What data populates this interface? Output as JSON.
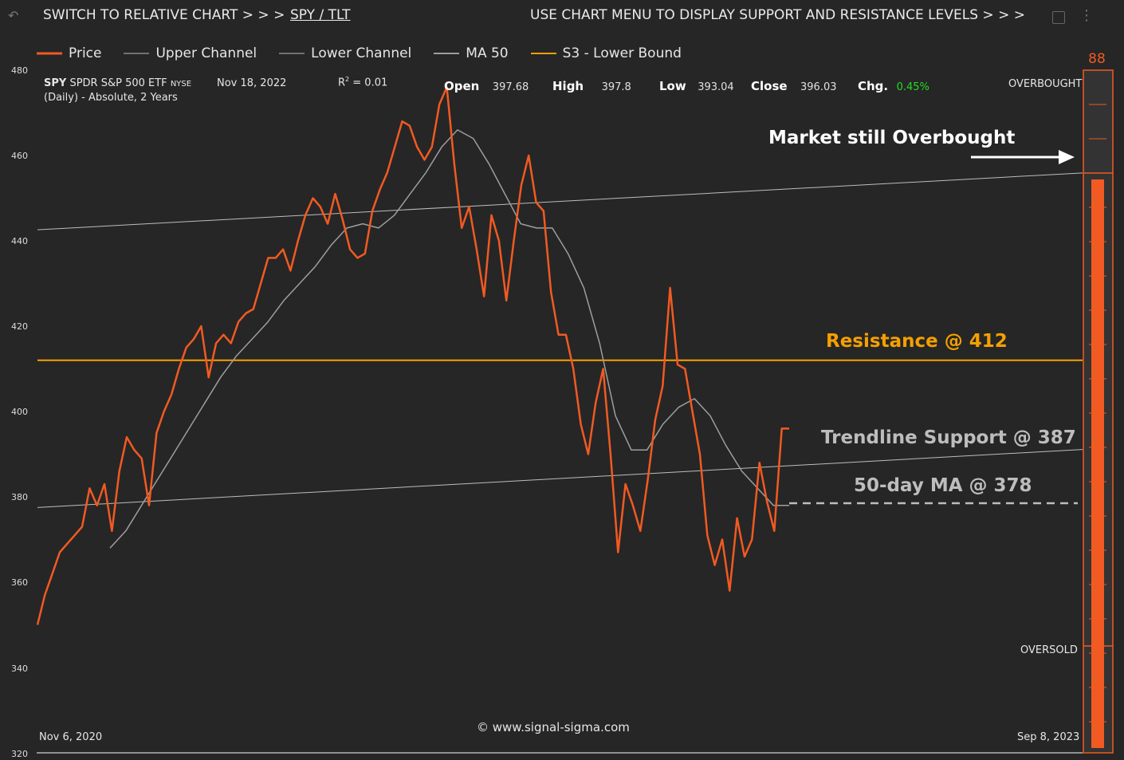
{
  "header": {
    "switch_text": "SWITCH TO RELATIVE CHART > > >",
    "pair_link": "SPY / TLT",
    "menu_text": "USE CHART MENU TO DISPLAY SUPPORT AND RESISTANCE LEVELS > > >",
    "icons": [
      "undo-icon",
      "chart-settings-icon",
      "more-vertical-icon"
    ]
  },
  "legend": [
    {
      "label": "Price",
      "color": "#f15a22"
    },
    {
      "label": "Upper Channel",
      "color": "#bdbdbd"
    },
    {
      "label": "Lower Channel",
      "color": "#bdbdbd"
    },
    {
      "label": "MA 50",
      "color": "#9e9e9e"
    },
    {
      "label": "S3 - Lower Bound",
      "color": "#f5a000"
    }
  ],
  "info": {
    "symbol": "SPY",
    "name": "SPDR S&P 500 ETF",
    "exchange": "NYSE",
    "subtitle": "(Daily) - Absolute, 2 Years",
    "date": "Nov 18, 2022",
    "r2_label": "R",
    "r2_sup": "2",
    "r2_value": "= 0.01",
    "open_label": "Open",
    "open": "397.68",
    "high_label": "High",
    "high": "397.8",
    "low_label": "Low",
    "low": "393.04",
    "close_label": "Close",
    "close": "396.03",
    "chg_label": "Chg.",
    "chg": "0.45%",
    "chg_color": "#22dd22"
  },
  "annotations": {
    "overbought_text": "Market still Overbought",
    "resistance_text": "Resistance @ 412",
    "trendline_text": "Trendline Support @ 387",
    "ma_text": "50-day MA @ 378"
  },
  "gauge": {
    "value": "88",
    "top_label": "OVERBOUGHT",
    "bottom_label": "OVERSOLD",
    "color": "#f15a22"
  },
  "footer": {
    "copyright": "© www.signal-sigma.com"
  },
  "chart_data": {
    "type": "line",
    "x_start": "Nov 6, 2020",
    "x_end": "Sep 8, 2023",
    "ylim": [
      320,
      480
    ],
    "y_ticks": [
      "480",
      "460",
      "440",
      "420",
      "400",
      "380",
      "360",
      "340",
      "320"
    ],
    "series": [
      {
        "name": "Price",
        "color": "#f15a22",
        "values": [
          350,
          357,
          362,
          367,
          369,
          371,
          373,
          382,
          378,
          383,
          372,
          386,
          394,
          391,
          389,
          378,
          395,
          400,
          404,
          410,
          415,
          417,
          420,
          408,
          416,
          418,
          416,
          421,
          423,
          424,
          430,
          436,
          436,
          438,
          433,
          440,
          446,
          450,
          448,
          444,
          451,
          445,
          438,
          436,
          437,
          447,
          452,
          456,
          462,
          468,
          467,
          462,
          459,
          462,
          472,
          476,
          458,
          443,
          448,
          438,
          427,
          446,
          440,
          426,
          440,
          453,
          460,
          449,
          447,
          428,
          418,
          418,
          410,
          397,
          390,
          402,
          410,
          390,
          367,
          383,
          378,
          372,
          384,
          398,
          406,
          429,
          411,
          410,
          400,
          390,
          371,
          364,
          370,
          358,
          375,
          366,
          370,
          388,
          379,
          372,
          396,
          396
        ]
      },
      {
        "name": "MA 50",
        "color": "#9e9e9e",
        "values": [
          368,
          372,
          378,
          384,
          390,
          396,
          402,
          408,
          413,
          417,
          421,
          426,
          430,
          434,
          439,
          443,
          444,
          443,
          446,
          451,
          456,
          462,
          466,
          464,
          458,
          451,
          444,
          443,
          443,
          437,
          429,
          416,
          399,
          391,
          391,
          397,
          401,
          403,
          399,
          392,
          386,
          382,
          378,
          378
        ]
      },
      {
        "name": "Upper Channel",
        "color": "#bdbdbd",
        "values": [
          442.6,
          455.9
        ]
      },
      {
        "name": "Lower Channel",
        "color": "#bdbdbd",
        "values": [
          377.5,
          391.1
        ]
      },
      {
        "name": "S3 - Lower Bound",
        "color": "#f5a000",
        "values": [
          412,
          412
        ]
      }
    ],
    "annotations": [
      {
        "text": "Resistance @ 412",
        "y": 412
      },
      {
        "text": "Trendline Support @ 387",
        "y": 387
      },
      {
        "text": "50-day MA @ 378",
        "y": 378
      }
    ],
    "grid": false,
    "legend": "top-left"
  }
}
